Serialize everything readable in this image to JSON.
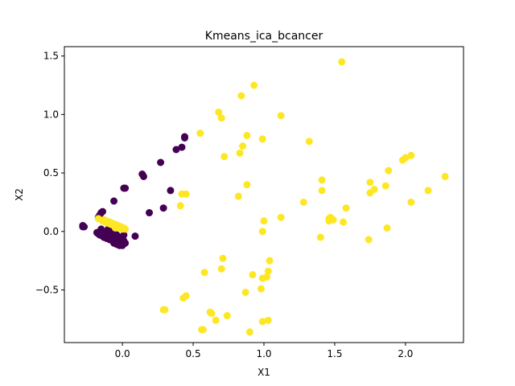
{
  "chart_data": {
    "type": "scatter",
    "title": "Kmeans_ica_bcancer",
    "xlabel": "X1",
    "ylabel": "X2",
    "xlim": [
      -0.41,
      2.41
    ],
    "ylim": [
      -0.95,
      1.58
    ],
    "xticks": [
      "0.0",
      "0.5",
      "1.0",
      "1.5",
      "2.0"
    ],
    "yticks": [
      "−0.5",
      "0.0",
      "0.5",
      "1.0",
      "1.5"
    ],
    "xtick_values": [
      0.0,
      0.5,
      1.0,
      1.5,
      2.0
    ],
    "ytick_values": [
      -0.5,
      0.0,
      0.5,
      1.0,
      1.5
    ],
    "grid": false,
    "legend": "none",
    "colors": {
      "cluster_0": "#440154",
      "cluster_1": "#fde725"
    },
    "series": [
      {
        "color": "#440154",
        "points": [
          [
            -0.28,
            0.05
          ],
          [
            -0.27,
            0.04
          ],
          [
            -0.28,
            0.04
          ],
          [
            -0.14,
            0.17
          ],
          [
            -0.15,
            0.16
          ],
          [
            -0.16,
            0.14
          ],
          [
            -0.17,
            0.12
          ],
          [
            -0.06,
            0.26
          ],
          [
            0.01,
            0.37
          ],
          [
            0.02,
            0.37
          ],
          [
            0.14,
            0.49
          ],
          [
            0.15,
            0.47
          ],
          [
            0.27,
            0.59
          ],
          [
            0.38,
            0.7
          ],
          [
            0.42,
            0.72
          ],
          [
            0.44,
            0.81
          ],
          [
            0.44,
            0.8
          ],
          [
            0.34,
            0.35
          ],
          [
            0.19,
            0.16
          ],
          [
            0.29,
            0.2
          ],
          [
            0.09,
            -0.04
          ],
          [
            -0.18,
            -0.01
          ],
          [
            -0.17,
            -0.02
          ],
          [
            -0.16,
            -0.03
          ],
          [
            -0.15,
            -0.01
          ],
          [
            -0.14,
            -0.04
          ],
          [
            -0.13,
            -0.05
          ],
          [
            -0.12,
            -0.03
          ],
          [
            -0.11,
            -0.06
          ],
          [
            -0.1,
            -0.04
          ],
          [
            -0.09,
            -0.07
          ],
          [
            -0.08,
            -0.05
          ],
          [
            -0.07,
            -0.08
          ],
          [
            -0.06,
            -0.1
          ],
          [
            -0.05,
            -0.07
          ],
          [
            -0.04,
            -0.11
          ],
          [
            -0.03,
            -0.09
          ],
          [
            -0.02,
            -0.12
          ],
          [
            -0.01,
            -0.1
          ],
          [
            0.0,
            -0.12
          ],
          [
            0.01,
            -0.08
          ],
          [
            0.02,
            -0.1
          ],
          [
            -0.12,
            0.0
          ],
          [
            -0.1,
            0.02
          ],
          [
            -0.08,
            0.01
          ],
          [
            -0.15,
            0.02
          ],
          [
            -0.06,
            -0.02
          ],
          [
            -0.04,
            -0.03
          ],
          [
            -0.02,
            -0.05
          ],
          [
            0.0,
            -0.06
          ],
          [
            -0.16,
            0.0
          ],
          [
            -0.13,
            -0.02
          ],
          [
            -0.11,
            -0.01
          ],
          [
            0.01,
            -0.03
          ],
          [
            -0.03,
            -0.06
          ]
        ]
      },
      {
        "color": "#fde725",
        "points": [
          [
            -0.17,
            0.11
          ],
          [
            -0.13,
            0.1
          ],
          [
            -0.12,
            0.08
          ],
          [
            -0.11,
            0.09
          ],
          [
            -0.1,
            0.07
          ],
          [
            -0.09,
            0.08
          ],
          [
            -0.08,
            0.06
          ],
          [
            -0.07,
            0.07
          ],
          [
            -0.06,
            0.05
          ],
          [
            -0.05,
            0.06
          ],
          [
            -0.04,
            0.04
          ],
          [
            -0.03,
            0.05
          ],
          [
            -0.02,
            0.03
          ],
          [
            -0.01,
            0.04
          ],
          [
            0.0,
            0.02
          ],
          [
            0.01,
            0.03
          ],
          [
            0.02,
            0.02
          ],
          [
            -0.14,
            0.09
          ],
          [
            -0.05,
            0.03
          ],
          [
            0.55,
            0.84
          ],
          [
            0.68,
            1.02
          ],
          [
            0.7,
            0.97
          ],
          [
            0.84,
            1.16
          ],
          [
            0.93,
            1.25
          ],
          [
            1.12,
            0.99
          ],
          [
            0.88,
            0.82
          ],
          [
            0.99,
            0.79
          ],
          [
            0.85,
            0.73
          ],
          [
            0.83,
            0.67
          ],
          [
            0.72,
            0.64
          ],
          [
            1.32,
            0.77
          ],
          [
            1.55,
            1.45
          ],
          [
            0.88,
            0.4
          ],
          [
            0.82,
            0.3
          ],
          [
            0.42,
            0.32
          ],
          [
            0.45,
            0.32
          ],
          [
            0.41,
            0.22
          ],
          [
            1.0,
            0.09
          ],
          [
            1.12,
            0.12
          ],
          [
            0.99,
            0.0
          ],
          [
            1.28,
            0.25
          ],
          [
            1.41,
            0.44
          ],
          [
            1.41,
            0.35
          ],
          [
            1.58,
            0.2
          ],
          [
            1.56,
            0.08
          ],
          [
            1.4,
            -0.05
          ],
          [
            1.46,
            0.09
          ],
          [
            1.46,
            0.11
          ],
          [
            1.49,
            0.1
          ],
          [
            1.47,
            0.12
          ],
          [
            1.75,
            0.42
          ],
          [
            1.78,
            0.36
          ],
          [
            1.75,
            0.33
          ],
          [
            1.86,
            0.39
          ],
          [
            1.88,
            0.52
          ],
          [
            1.98,
            0.61
          ],
          [
            2.0,
            0.63
          ],
          [
            2.04,
            0.65
          ],
          [
            2.04,
            0.25
          ],
          [
            2.16,
            0.35
          ],
          [
            2.28,
            0.47
          ],
          [
            1.87,
            0.03
          ],
          [
            1.74,
            -0.07
          ],
          [
            0.71,
            -0.23
          ],
          [
            0.7,
            -0.32
          ],
          [
            0.58,
            -0.35
          ],
          [
            0.92,
            -0.37
          ],
          [
            1.04,
            -0.25
          ],
          [
            1.03,
            -0.34
          ],
          [
            1.02,
            -0.39
          ],
          [
            0.99,
            -0.4
          ],
          [
            0.98,
            -0.49
          ],
          [
            0.87,
            -0.52
          ],
          [
            0.45,
            -0.55
          ],
          [
            0.43,
            -0.57
          ],
          [
            0.29,
            -0.67
          ],
          [
            0.3,
            -0.67
          ],
          [
            0.62,
            -0.69
          ],
          [
            0.63,
            -0.7
          ],
          [
            0.66,
            -0.76
          ],
          [
            0.74,
            -0.72
          ],
          [
            0.56,
            -0.84
          ],
          [
            0.57,
            -0.84
          ],
          [
            0.99,
            -0.77
          ],
          [
            1.03,
            -0.76
          ],
          [
            0.9,
            -0.86
          ]
        ]
      }
    ]
  }
}
